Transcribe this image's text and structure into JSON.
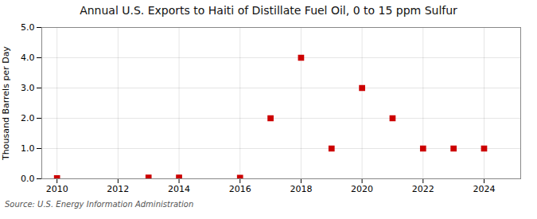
{
  "chart_data": {
    "type": "scatter",
    "title": "Annual U.S. Exports to Haiti of Distillate Fuel Oil, 0 to 15 ppm Sulfur",
    "ylabel": "Thousand Barrels per Day",
    "source": "Source: U.S. Energy Information Administration",
    "x": [
      2010,
      2013,
      2014,
      2016,
      2017,
      2018,
      2019,
      2020,
      2021,
      2022,
      2023,
      2024
    ],
    "values": [
      0.02,
      0.04,
      0.04,
      0.03,
      2.0,
      4.0,
      1.0,
      3.0,
      2.0,
      1.0,
      1.0,
      1.0
    ],
    "color": "#cc0000",
    "marker": "square",
    "xlim": [
      2009.5,
      2025.2
    ],
    "ylim": [
      0.0,
      5.0
    ],
    "xticks": [
      2010,
      2012,
      2014,
      2016,
      2018,
      2020,
      2022,
      2024
    ],
    "yticks": [
      {
        "value": 0.0,
        "label": "0.0"
      },
      {
        "value": 1.0,
        "label": "1.0"
      },
      {
        "value": 2.0,
        "label": "2.0"
      },
      {
        "value": 3.0,
        "label": "3.0"
      },
      {
        "value": 4.0,
        "label": "4.0"
      },
      {
        "value": 5.0,
        "label": "5.0"
      }
    ],
    "grid": true
  }
}
